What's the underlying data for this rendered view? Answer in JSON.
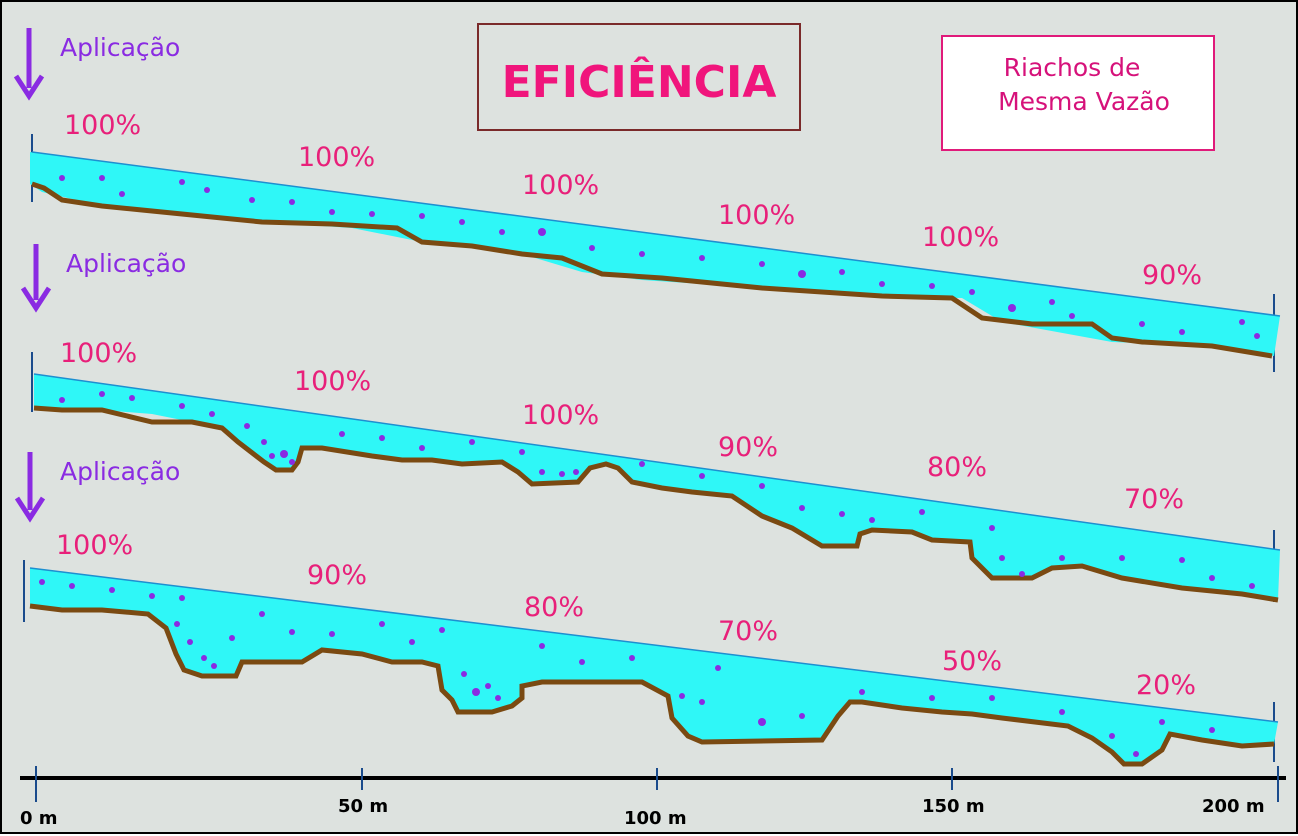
{
  "title": "EFICIÊNCIA",
  "legend_box": {
    "line1": "Riachos de",
    "line2": "Mesma Vazão"
  },
  "application_label": "Aplicação",
  "axis": {
    "ticks": [
      "0 m",
      "50 m",
      "100 m",
      "150 m",
      "200 m"
    ]
  },
  "streams": [
    {
      "name": "stream-1",
      "labels": [
        "100%",
        "100%",
        "100%",
        "100%",
        "100%",
        "90%"
      ]
    },
    {
      "name": "stream-2",
      "labels": [
        "100%",
        "100%",
        "100%",
        "90%",
        "80%",
        "70%"
      ]
    },
    {
      "name": "stream-3",
      "labels": [
        "100%",
        "90%",
        "80%",
        "70%",
        "50%",
        "20%"
      ]
    }
  ],
  "colors": {
    "water": "#2ff7f7",
    "bed": "#7a4a12",
    "dots": "#8a2be2",
    "percent": "#e8207a",
    "background": "#dde2df"
  }
}
